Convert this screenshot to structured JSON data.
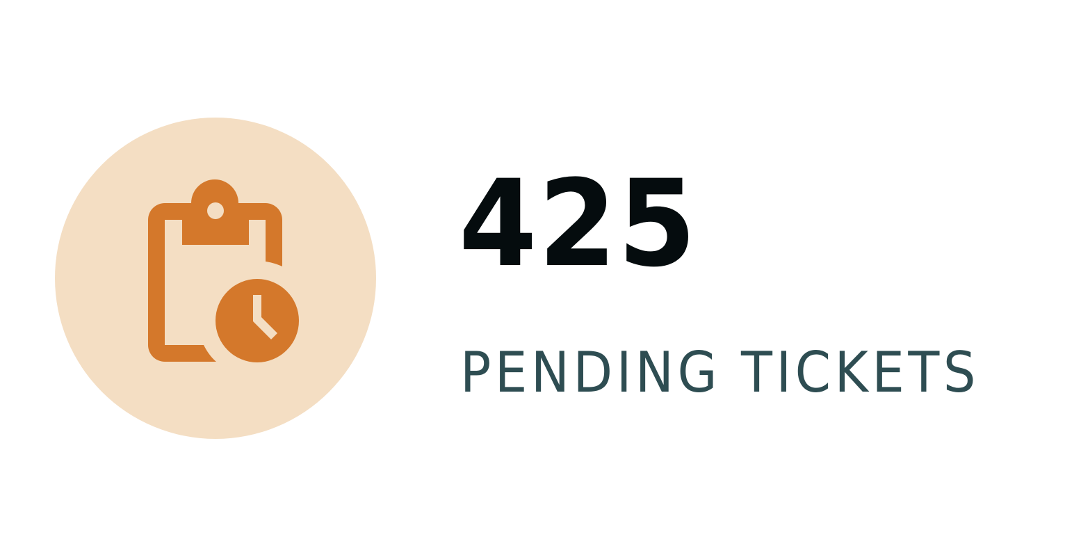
{
  "stat": {
    "value": "425",
    "label": "PENDING TICKETS"
  },
  "icon": {
    "name": "pending-clipboard-clock-icon",
    "circle_color": "#f4dec3",
    "icon_color": "#d4782b"
  },
  "colors": {
    "value_text": "#050c0e",
    "label_text": "#2e4d52",
    "background": "#ffffff"
  }
}
